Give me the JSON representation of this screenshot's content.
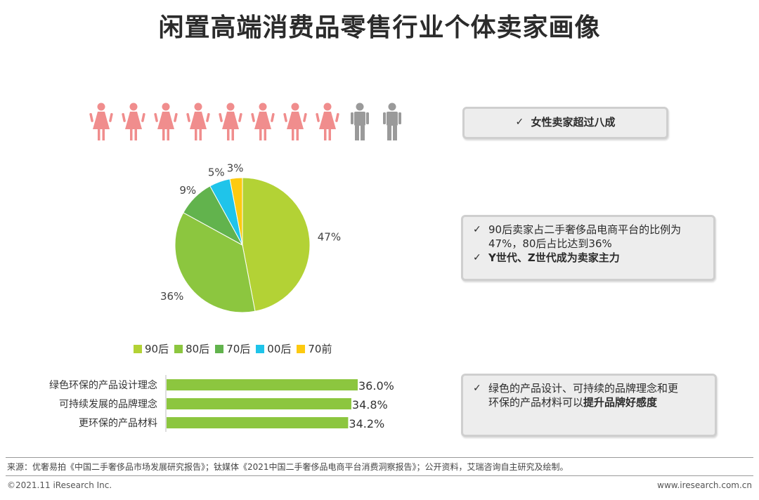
{
  "title": "闲置高端消费品零售行业个体卖家画像",
  "people": {
    "female_count": 8,
    "male_count": 2,
    "female_color": "#f08d8d",
    "male_color": "#9a9a9a"
  },
  "boxes": {
    "gender": {
      "line1": "女性卖家超过八成"
    },
    "age": {
      "line1": "90后卖家占二手奢侈品电商平台的比例为",
      "line1b": "47%，80后占比达到36%",
      "line2": "Y世代、Z世代成为卖家主力"
    },
    "concept": {
      "line1": "绿色的产品设计、可持续的品牌理念和更",
      "line1b_prefix": "环保的产品材料可以",
      "line1b_bold": "提升品牌好感度"
    }
  },
  "check_mark": "✓",
  "chart_data": [
    {
      "type": "pie",
      "categories": [
        "90后",
        "80后",
        "70后",
        "00后",
        "70前"
      ],
      "values": [
        47,
        36,
        9,
        5,
        3
      ],
      "labels": [
        "47%",
        "36%",
        "9%",
        "5%",
        "3%"
      ],
      "colors": [
        "#b3d235",
        "#8cc63f",
        "#62b34d",
        "#1fc4ea",
        "#fdca10"
      ],
      "legend": "bottom"
    },
    {
      "type": "bar",
      "orientation": "horizontal",
      "categories": [
        "绿色环保的产品设计理念",
        "可持续发展的品牌理念",
        "更环保的产品材料"
      ],
      "values": [
        36.0,
        34.8,
        34.2
      ],
      "labels": [
        "36.0%",
        "34.8%",
        "34.2%"
      ],
      "color": "#8cc63f"
    }
  ],
  "footer": {
    "source": "来源：优奢易拍《中国二手奢侈品市场发展研究报告》；钛媒体《2021中国二手奢侈品电商平台消费洞察报告》；公开资料，艾瑞咨询自主研究及绘制。",
    "copyright": "©2021.11 iResearch Inc.",
    "website": "www.iresearch.com.cn"
  }
}
